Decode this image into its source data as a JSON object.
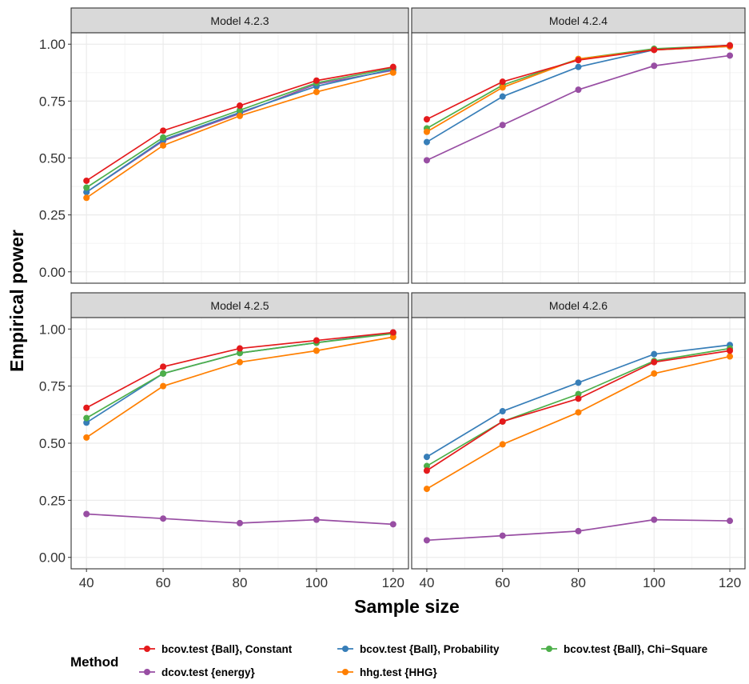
{
  "chart_data": {
    "type": "line",
    "xlabel": "Sample size",
    "ylabel": "Empirical power",
    "x": [
      40,
      60,
      80,
      100,
      120
    ],
    "xlim": [
      36,
      124
    ],
    "ylim": [
      -0.05,
      1.05
    ],
    "y_ticks": [
      0.0,
      0.25,
      0.5,
      0.75,
      1.0
    ],
    "y_tick_labels": [
      "0.00",
      "0.25",
      "0.50",
      "0.75",
      "1.00"
    ],
    "x_tick_labels": [
      "40",
      "60",
      "80",
      "100",
      "120"
    ],
    "grid": true,
    "legend": {
      "title": "Method",
      "position": "bottom",
      "entries": [
        {
          "name": "bcov.test {Ball}, Constant",
          "color": "#e41a1c"
        },
        {
          "name": "bcov.test {Ball}, Probability",
          "color": "#377eb8"
        },
        {
          "name": "bcov.test {Ball}, Chi−Square",
          "color": "#4daf4a"
        },
        {
          "name": "dcov.test {energy}",
          "color": "#984ea3"
        },
        {
          "name": "hhg.test {HHG}",
          "color": "#ff7f00"
        }
      ]
    },
    "panels": [
      {
        "title": "Model 4.2.3",
        "series": [
          {
            "name": "dcov.test {energy}",
            "color": "#984ea3",
            "values": [
              0.35,
              0.575,
              0.695,
              0.825,
              0.885
            ]
          },
          {
            "name": "bcov.test {Ball}, Probability",
            "color": "#377eb8",
            "values": [
              0.35,
              0.58,
              0.7,
              0.815,
              0.89
            ]
          },
          {
            "name": "bcov.test {Ball}, Chi−Square",
            "color": "#4daf4a",
            "values": [
              0.37,
              0.59,
              0.71,
              0.83,
              0.895
            ]
          },
          {
            "name": "hhg.test {HHG}",
            "color": "#ff7f00",
            "values": [
              0.325,
              0.555,
              0.685,
              0.79,
              0.875
            ]
          },
          {
            "name": "bcov.test {Ball}, Constant",
            "color": "#e41a1c",
            "values": [
              0.4,
              0.62,
              0.73,
              0.84,
              0.9
            ]
          }
        ]
      },
      {
        "title": "Model 4.2.4",
        "series": [
          {
            "name": "dcov.test {energy}",
            "color": "#984ea3",
            "values": [
              0.49,
              0.645,
              0.8,
              0.905,
              0.95
            ]
          },
          {
            "name": "bcov.test {Ball}, Probability",
            "color": "#377eb8",
            "values": [
              0.57,
              0.77,
              0.9,
              0.975,
              0.99
            ]
          },
          {
            "name": "bcov.test {Ball}, Chi−Square",
            "color": "#4daf4a",
            "values": [
              0.63,
              0.82,
              0.935,
              0.98,
              0.995
            ]
          },
          {
            "name": "hhg.test {HHG}",
            "color": "#ff7f00",
            "values": [
              0.615,
              0.81,
              0.935,
              0.975,
              0.99
            ]
          },
          {
            "name": "bcov.test {Ball}, Constant",
            "color": "#e41a1c",
            "values": [
              0.67,
              0.835,
              0.93,
              0.975,
              0.995
            ]
          }
        ]
      },
      {
        "title": "Model 4.2.5",
        "series": [
          {
            "name": "dcov.test {energy}",
            "color": "#984ea3",
            "values": [
              0.19,
              0.17,
              0.15,
              0.165,
              0.145
            ]
          },
          {
            "name": "bcov.test {Ball}, Probability",
            "color": "#377eb8",
            "values": [
              0.59,
              0.805,
              0.895,
              0.94,
              0.985
            ]
          },
          {
            "name": "bcov.test {Ball}, Chi−Square",
            "color": "#4daf4a",
            "values": [
              0.61,
              0.805,
              0.895,
              0.94,
              0.98
            ]
          },
          {
            "name": "hhg.test {HHG}",
            "color": "#ff7f00",
            "values": [
              0.525,
              0.75,
              0.855,
              0.905,
              0.965
            ]
          },
          {
            "name": "bcov.test {Ball}, Constant",
            "color": "#e41a1c",
            "values": [
              0.655,
              0.835,
              0.915,
              0.95,
              0.985
            ]
          }
        ]
      },
      {
        "title": "Model 4.2.6",
        "series": [
          {
            "name": "dcov.test {energy}",
            "color": "#984ea3",
            "values": [
              0.075,
              0.095,
              0.115,
              0.165,
              0.16
            ]
          },
          {
            "name": "bcov.test {Ball}, Probability",
            "color": "#377eb8",
            "values": [
              0.44,
              0.64,
              0.765,
              0.89,
              0.93
            ]
          },
          {
            "name": "bcov.test {Ball}, Chi−Square",
            "color": "#4daf4a",
            "values": [
              0.4,
              0.595,
              0.715,
              0.86,
              0.915
            ]
          },
          {
            "name": "hhg.test {HHG}",
            "color": "#ff7f00",
            "values": [
              0.3,
              0.495,
              0.635,
              0.805,
              0.88
            ]
          },
          {
            "name": "bcov.test {Ball}, Constant",
            "color": "#e41a1c",
            "values": [
              0.38,
              0.595,
              0.695,
              0.855,
              0.905
            ]
          }
        ]
      }
    ]
  }
}
